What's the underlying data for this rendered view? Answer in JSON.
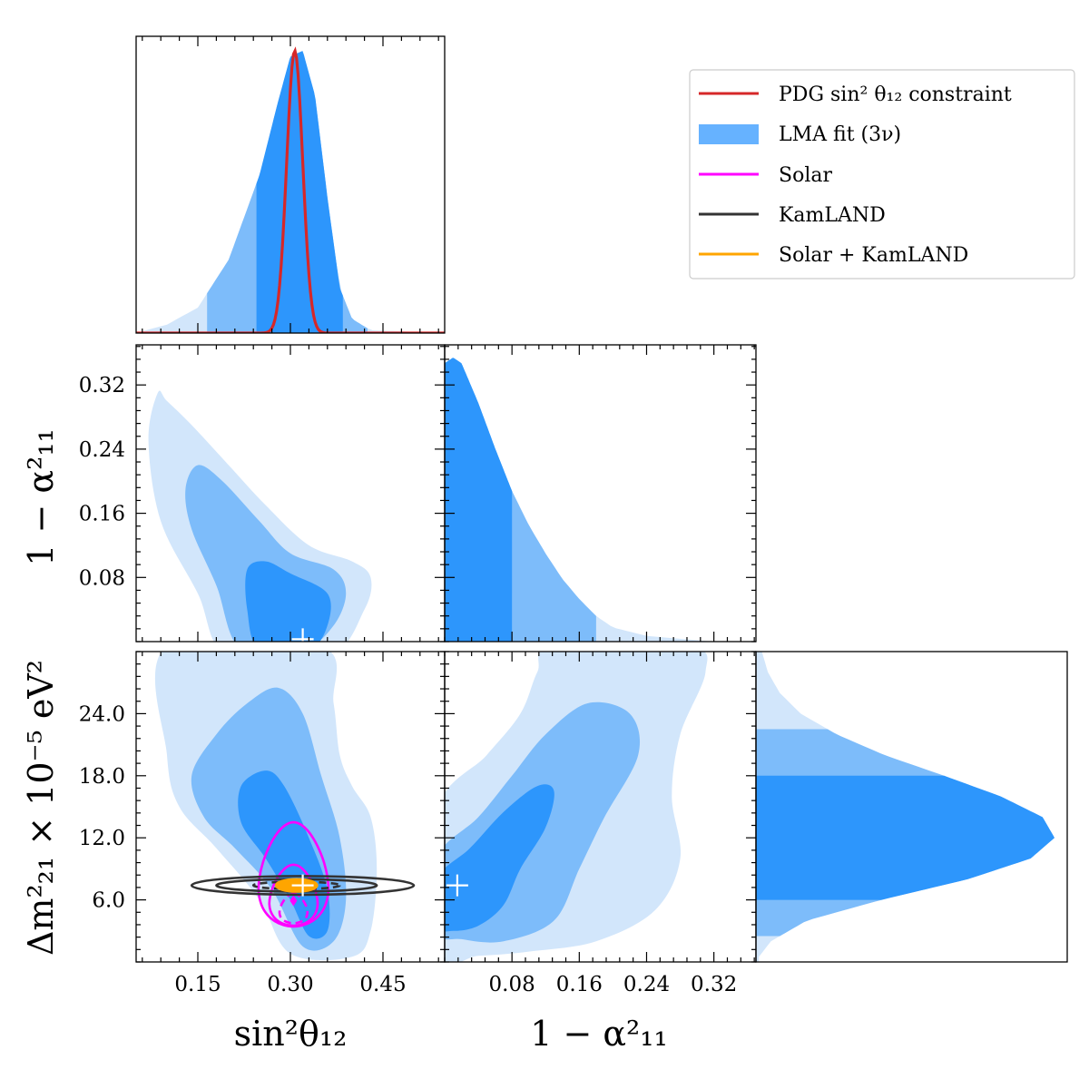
{
  "chart_data": {
    "type": "corner",
    "parameters": [
      {
        "name": "sin2theta12",
        "label": "sin²θ₁₂",
        "range": [
          0.05,
          0.55
        ],
        "ticks": [
          0.15,
          0.3,
          0.45
        ],
        "tick_labels": [
          "0.15",
          "0.30",
          "0.45"
        ]
      },
      {
        "name": "one_minus_alpha11_sq",
        "label": "1 − α²₁₁",
        "range": [
          0.0,
          0.37
        ],
        "ticks": [
          0.08,
          0.16,
          0.24,
          0.32
        ],
        "tick_labels": [
          "0.08",
          "0.16",
          "0.24",
          "0.32"
        ]
      },
      {
        "name": "dm21",
        "label": "Δm²₂₁ × 10⁻⁵ eV²",
        "range": [
          0.0,
          30.0
        ],
        "ticks": [
          6.0,
          12.0,
          18.0,
          24.0
        ],
        "tick_labels": [
          "6.0",
          "12.0",
          "18.0",
          "24.0"
        ]
      }
    ],
    "colors": {
      "pdg": "#d62728",
      "lma_1sigma": "#2d96fc",
      "lma_2sigma": "#7dbcfa",
      "lma_3sigma": "#d2e6fb",
      "solar": "#ff00ff",
      "kamland": "#333333",
      "solar_kamland": "#ffa500",
      "marker": "#ffffff"
    },
    "legend": {
      "position": "top-right",
      "entries": [
        {
          "label": "PDG sin² θ₁₂ constraint",
          "color": "#d62728",
          "kind": "line"
        },
        {
          "label": "LMA fit (3ν)",
          "color": "#66b2ff",
          "kind": "patch"
        },
        {
          "label": "Solar",
          "color": "#ff00ff",
          "kind": "line"
        },
        {
          "label": "KamLAND",
          "color": "#333333",
          "kind": "line"
        },
        {
          "label": "Solar + KamLAND",
          "color": "#ffa500",
          "kind": "line"
        }
      ]
    },
    "marginal_sin2theta12": {
      "lma": {
        "x": [
          0.05,
          0.1,
          0.15,
          0.2,
          0.25,
          0.28,
          0.3,
          0.32,
          0.34,
          0.36,
          0.38,
          0.4,
          0.43,
          0.55
        ],
        "density": [
          0.0,
          0.03,
          0.09,
          0.26,
          0.56,
          0.82,
          0.98,
          1.0,
          0.84,
          0.48,
          0.16,
          0.05,
          0.01,
          0.0
        ]
      },
      "bands": {
        "one_sigma": [
          0.285,
          0.355
        ],
        "two_sigma": [
          0.245,
          0.385
        ],
        "three_sigma": [
          0.165,
          0.425
        ]
      },
      "pdg": {
        "mean": 0.307,
        "sigma": 0.013
      }
    },
    "marginal_one_minus_alpha11_sq": {
      "x": [
        0.0,
        0.01,
        0.02,
        0.04,
        0.06,
        0.08,
        0.1,
        0.12,
        0.14,
        0.16,
        0.18,
        0.2,
        0.24,
        0.28,
        0.32,
        0.37
      ],
      "density": [
        0.98,
        1.0,
        0.98,
        0.84,
        0.68,
        0.53,
        0.41,
        0.31,
        0.22,
        0.15,
        0.09,
        0.05,
        0.02,
        0.01,
        0.0,
        0.0
      ],
      "bands": {
        "one_sigma": 0.08,
        "two_sigma": 0.18
      }
    },
    "marginal_dm21": {
      "y": [
        0.5,
        2.0,
        4.0,
        6.0,
        8.0,
        10.0,
        12.0,
        14.0,
        16.0,
        18.0,
        20.0,
        22.0,
        24.0,
        26.0,
        28.0,
        30.0
      ],
      "density": [
        0.01,
        0.05,
        0.17,
        0.42,
        0.71,
        0.92,
        1.0,
        0.96,
        0.82,
        0.63,
        0.43,
        0.27,
        0.15,
        0.08,
        0.04,
        0.02
      ],
      "bands": {
        "one_sigma": [
          6.0,
          18.0
        ],
        "two_sigma": [
          2.5,
          22.5
        ]
      }
    },
    "best_fit_marker": {
      "sin2theta12": 0.32,
      "one_minus_alpha11_sq": 0.0,
      "dm21": 7.4
    },
    "solar_contours_center": {
      "sin2theta12": 0.305,
      "dm21": 5.5
    },
    "kamland_contours_center": {
      "sin2theta12": 0.31,
      "dm21": 7.4
    },
    "solar_kamland_center": {
      "sin2theta12": 0.31,
      "dm21": 7.4
    }
  }
}
